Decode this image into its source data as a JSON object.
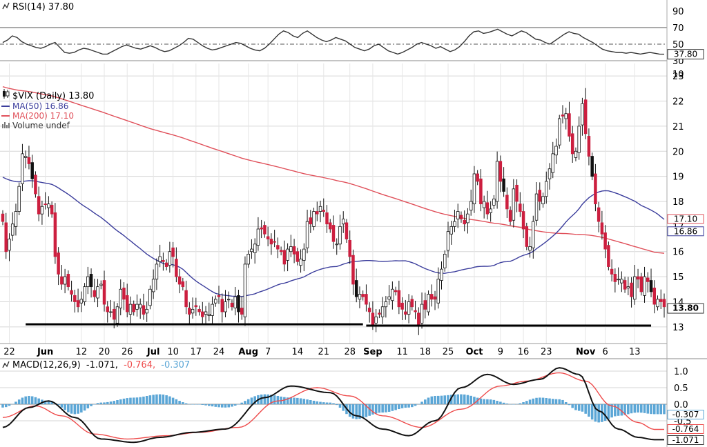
{
  "colors": {
    "up": "#ffffff",
    "down": "#cc1f3f",
    "dark": "#111111",
    "ma50": "#3b3d9c",
    "ma200": "#e0505a",
    "rsi": "#333333",
    "macd": "#111111",
    "signal": "#ee4b4b",
    "hist": "#5ba6d6",
    "grid": "#d6d6d6"
  },
  "chart_data": [
    {
      "type": "line",
      "panel": "rsi",
      "legend": "RSI(14) 37.80",
      "icon": "chart-line-icon",
      "ylim": [
        30,
        90
      ],
      "ytick_labels": [
        "90",
        "70",
        "50",
        "30"
      ],
      "ytick_values": [
        90,
        70,
        50,
        30
      ],
      "reference_lines": [
        70,
        50,
        30
      ],
      "last_label": "37.80",
      "last_value": 37.8,
      "values": [
        52,
        55,
        60,
        58,
        53,
        50,
        48,
        46,
        45,
        47,
        50,
        52,
        46,
        40,
        39,
        40,
        43,
        45,
        44,
        42,
        40,
        38,
        38,
        41,
        44,
        47,
        49,
        47,
        45,
        44,
        46,
        48,
        46,
        43,
        41,
        42,
        45,
        48,
        52,
        57,
        56,
        52,
        48,
        45,
        43,
        44,
        46,
        48,
        50,
        52,
        51,
        48,
        45,
        43,
        42,
        45,
        50,
        56,
        62,
        66,
        64,
        60,
        58,
        63,
        66,
        62,
        58,
        55,
        53,
        55,
        58,
        56,
        54,
        50,
        46,
        44,
        42,
        44,
        48,
        50,
        46,
        42,
        40,
        38,
        40,
        43,
        46,
        50,
        52,
        50,
        48,
        45,
        47,
        44,
        41,
        43,
        47,
        53,
        60,
        65,
        66,
        63,
        64,
        66,
        68,
        65,
        62,
        60,
        63,
        66,
        64,
        60,
        56,
        55,
        52,
        50,
        54,
        58,
        62,
        65,
        63,
        62,
        58,
        55,
        52,
        48,
        44,
        42,
        41,
        40,
        40,
        39,
        40,
        39,
        38,
        39,
        40,
        39,
        38,
        37.8
      ]
    },
    {
      "type": "candlestick",
      "panel": "price",
      "legend": [
        {
          "label": "$VIX (Daily) 13.80",
          "icon": "candlestick-icon"
        },
        {
          "label": "MA(50) 16.86",
          "icon": "line-swatch-icon"
        },
        {
          "label": "MA(200) 17.10",
          "icon": "line-swatch-icon"
        },
        {
          "label": "Volume undef",
          "icon": "volume-icon"
        }
      ],
      "ylim": [
        12.5,
        23.5
      ],
      "ytick_labels": [
        "10",
        "23",
        "22",
        "21",
        "20",
        "19",
        "18",
        "17",
        "16",
        "15",
        "14",
        "13"
      ],
      "ytick_values": [
        10,
        23,
        22,
        21,
        20,
        19,
        18,
        17,
        16,
        15,
        14,
        13
      ],
      "last_label": "13.80",
      "last_value": 13.8,
      "ma50_label": "16.86",
      "ma50_value": 16.86,
      "ma200_label": "17.10",
      "ma200_value": 17.1,
      "support_lines": [
        {
          "from": 7,
          "to": 110,
          "y": 13.1
        },
        {
          "from": 111,
          "to": 198,
          "y": 13.05
        }
      ],
      "x_labels": [
        "22",
        "Jun",
        "12",
        "20",
        "26",
        "Jul",
        "10",
        "17",
        "24",
        "Aug",
        "7",
        "14",
        "21",
        "28",
        "Sep",
        "11",
        "18",
        "25",
        "Oct",
        "9",
        "16",
        "23",
        "Nov",
        "6",
        "13"
      ],
      "x_label_index": [
        2,
        13,
        24,
        31,
        38,
        46,
        52,
        59,
        66,
        75,
        81,
        90,
        98,
        106,
        113,
        122,
        129,
        136,
        144,
        152,
        159,
        166,
        178,
        184,
        193
      ],
      "x_label_bold": [
        false,
        true,
        false,
        false,
        false,
        true,
        false,
        false,
        false,
        true,
        false,
        false,
        false,
        false,
        true,
        false,
        false,
        false,
        true,
        false,
        false,
        false,
        true,
        false,
        false
      ],
      "closes": [
        17.2,
        16.0,
        16.5,
        17.1,
        17.6,
        18.6,
        19.9,
        19.8,
        19.5,
        18.9,
        18.3,
        17.5,
        17.8,
        17.9,
        17.9,
        17.5,
        15.8,
        15.1,
        14.7,
        15.0,
        14.6,
        14.3,
        14.0,
        13.8,
        14.1,
        14.6,
        15.0,
        14.6,
        14.2,
        14.6,
        14.7,
        13.9,
        13.6,
        13.6,
        13.3,
        13.8,
        14.5,
        14.1,
        13.6,
        13.9,
        13.6,
        13.9,
        13.9,
        13.5,
        13.7,
        14.5,
        14.9,
        15.5,
        15.8,
        15.6,
        15.4,
        16.0,
        15.8,
        15.0,
        14.7,
        14.6,
        13.8,
        13.5,
        13.7,
        13.8,
        13.6,
        13.4,
        13.6,
        13.5,
        13.9,
        14.1,
        14.2,
        13.6,
        14.0,
        14.1,
        13.8,
        14.2,
        13.6,
        13.5,
        15.5,
        15.9,
        16.1,
        16.3,
        16.9,
        16.9,
        16.7,
        16.5,
        16.3,
        16.4,
        16.1,
        16.0,
        15.5,
        16.1,
        16.2,
        15.9,
        15.6,
        15.7,
        16.1,
        17.2,
        17.1,
        17.6,
        17.5,
        17.8,
        17.6,
        17.1,
        16.9,
        16.4,
        16.3,
        17.0,
        17.3,
        16.5,
        15.8,
        14.7,
        14.2,
        14.3,
        14.2,
        13.9,
        13.6,
        13.1,
        13.4,
        13.5,
        13.8,
        14.0,
        14.2,
        14.5,
        14.4,
        13.8,
        13.7,
        13.5,
        14.0,
        13.8,
        13.6,
        13.1,
        13.9,
        13.7,
        14.3,
        14.1,
        14.1,
        14.9,
        15.3,
        15.9,
        16.8,
        17.0,
        17.2,
        17.6,
        17.3,
        17.1,
        17.5,
        18.0,
        19.1,
        18.8,
        17.9,
        18.0,
        17.5,
        17.7,
        18.1,
        19.6,
        18.8,
        18.4,
        17.7,
        17.2,
        18.5,
        18.0,
        17.6,
        16.9,
        16.2,
        16.2,
        17.2,
        18.3,
        18.0,
        18.2,
        18.8,
        19.3,
        19.9,
        20.2,
        21.3,
        21.4,
        21.5,
        20.6,
        19.9,
        20.0,
        21.0,
        21.9,
        20.7,
        19.8,
        19.0,
        17.9,
        17.2,
        16.7,
        16.1,
        15.4,
        15.1,
        14.8,
        14.9,
        14.9,
        14.5,
        14.6,
        14.2,
        15.0,
        14.9,
        14.4,
        15.0,
        14.8,
        14.4,
        13.9,
        14.1,
        14.0,
        13.8
      ]
    },
    {
      "type": "line",
      "panel": "macd",
      "legend_prefix": "MACD(12,26,9)",
      "legend_macd": "-1.071,",
      "legend_signal": "-0.764,",
      "legend_hist": "-0.307",
      "icon": "chart-line-icon",
      "ylim": [
        -1.25,
        1.25
      ],
      "ytick_labels": [
        "1.0",
        "0.5",
        "0.0",
        "-0.5"
      ],
      "ytick_values": [
        1.0,
        0.5,
        0.0,
        -0.5
      ],
      "hist_label": "-0.307",
      "hist_value": -0.307,
      "signal_label": "-0.764",
      "signal_value": -0.764,
      "macd_label": "-1.071",
      "macd_value": -1.071,
      "macd_key_x": [
        0,
        8,
        14,
        22,
        30,
        40,
        48,
        58,
        68,
        80,
        88,
        100,
        108,
        116,
        124,
        132,
        140,
        148,
        156,
        164,
        170,
        176,
        182,
        188,
        194,
        199
      ],
      "macd_key_y": [
        -0.7,
        -0.1,
        0.1,
        -0.4,
        -1.05,
        -1.15,
        -1.0,
        -0.85,
        -0.75,
        0.2,
        0.55,
        0.35,
        -0.35,
        -0.75,
        -0.95,
        -0.5,
        0.5,
        0.9,
        0.6,
        0.75,
        1.1,
        0.9,
        -0.2,
        -0.75,
        -1.0,
        -1.07
      ],
      "signal_key_x": [
        0,
        10,
        18,
        28,
        38,
        50,
        60,
        72,
        84,
        96,
        106,
        116,
        128,
        140,
        152,
        160,
        170,
        178,
        186,
        194,
        199
      ],
      "signal_key_y": [
        -0.4,
        -0.05,
        -0.35,
        -0.9,
        -1.05,
        -0.95,
        -0.85,
        -0.7,
        0.1,
        0.5,
        0.25,
        -0.35,
        -0.7,
        -0.15,
        0.55,
        0.7,
        0.95,
        0.7,
        -0.05,
        -0.55,
        -0.76
      ],
      "hist_key_x": [
        0,
        8,
        14,
        22,
        30,
        40,
        48,
        58,
        68,
        80,
        88,
        100,
        108,
        116,
        124,
        132,
        140,
        148,
        156,
        164,
        170,
        176,
        182,
        188,
        194,
        199
      ],
      "hist_key_y": [
        -0.1,
        0.25,
        0.1,
        -0.3,
        0.05,
        0.2,
        0.3,
        0.0,
        -0.1,
        0.3,
        0.2,
        0.05,
        -0.45,
        -0.25,
        -0.1,
        0.25,
        0.3,
        0.15,
        0.0,
        0.2,
        0.15,
        -0.2,
        -0.55,
        -0.35,
        -0.25,
        -0.3
      ]
    }
  ]
}
